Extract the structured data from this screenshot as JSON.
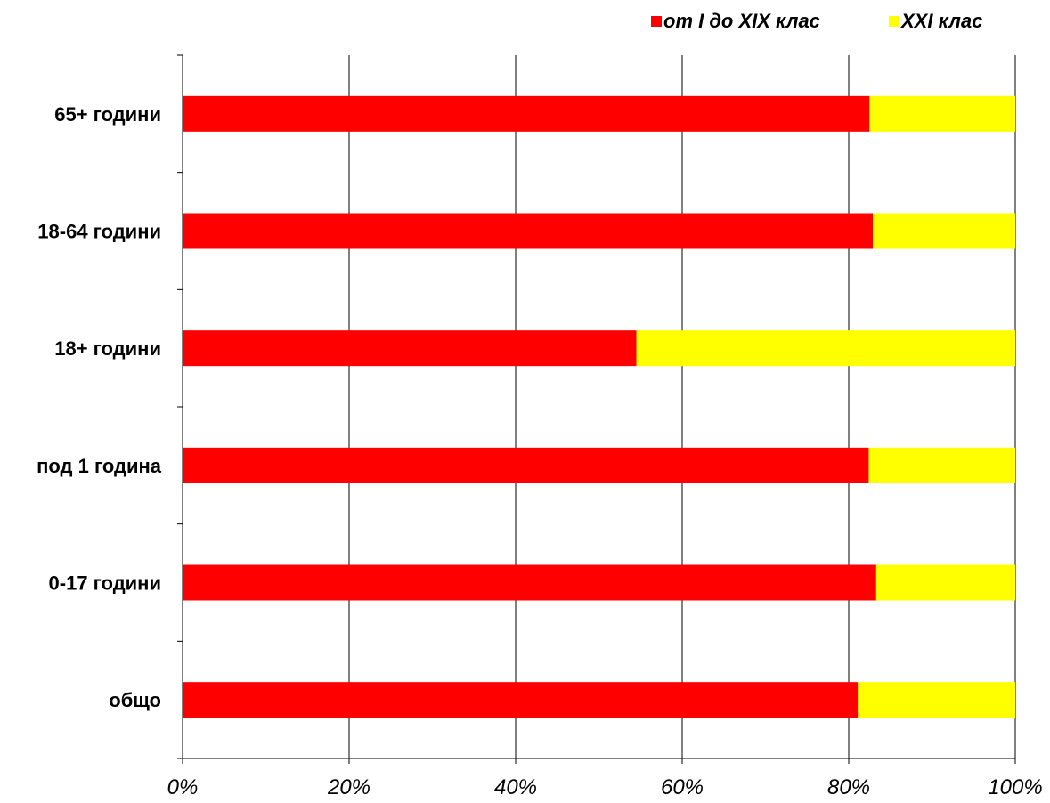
{
  "chart_data": {
    "type": "bar",
    "orientation": "horizontal",
    "stacked": "percent",
    "categories": [
      "65+ години",
      "18-64 години",
      "18+ години",
      "под 1 година",
      "0-17 години",
      "общо"
    ],
    "series": [
      {
        "name": "от I до XIX клас",
        "color": "#ff0000",
        "values": [
          82.5,
          82.9,
          54.5,
          82.4,
          83.3,
          81.1
        ]
      },
      {
        "name": "XXI клас",
        "color": "#ffff00",
        "values": [
          17.5,
          17.1,
          45.5,
          17.6,
          16.7,
          18.9
        ]
      }
    ],
    "xlim": [
      0,
      100
    ],
    "x_ticks": [
      "0%",
      "20%",
      "40%",
      "60%",
      "80%",
      "100%"
    ],
    "grid": "vertical",
    "legend_position": "top-right",
    "title": "",
    "xlabel": "",
    "ylabel": ""
  }
}
